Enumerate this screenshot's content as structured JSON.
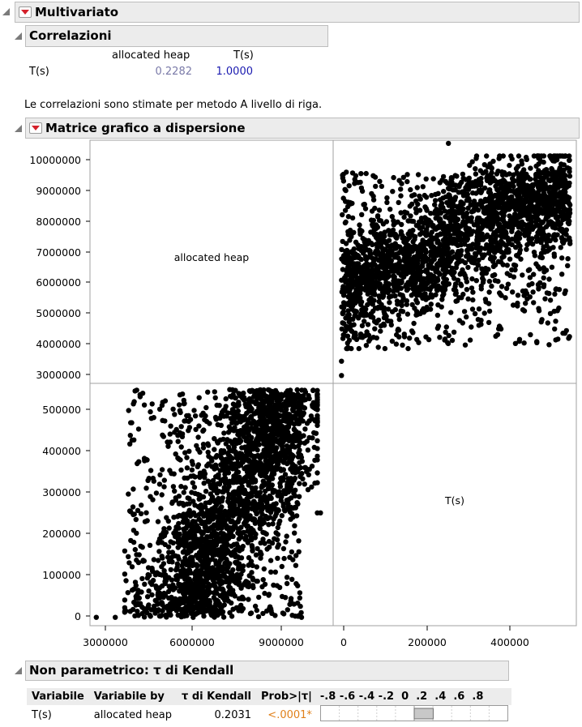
{
  "multivariate": {
    "title": "Multivariato"
  },
  "correlations": {
    "title": "Correlazioni",
    "columns": [
      "allocated heap",
      "T(s)"
    ],
    "row_label": "T(s)",
    "values": [
      "0.2282",
      "1.0000"
    ],
    "value_colors": [
      "#7a7aa8",
      "#1a1ab0"
    ],
    "note": "Le correlazioni sono stimate per metodo A livello di riga."
  },
  "scatter": {
    "title": "Matrice grafico a dispersione",
    "diag_labels": [
      "allocated heap",
      "T(s)"
    ],
    "y_ticks_heap": [
      "10000000",
      "9000000",
      "8000000",
      "7000000",
      "6000000",
      "5000000",
      "4000000",
      "3000000"
    ],
    "y_ticks_T": [
      "500000",
      "400000",
      "300000",
      "200000",
      "100000",
      "0"
    ],
    "x_ticks_heap": [
      "3000000",
      "6000000",
      "9000000"
    ],
    "x_ticks_T": [
      "0",
      "200000",
      "400000"
    ]
  },
  "chart_data": {
    "type": "scatter",
    "title": "Matrice grafico a dispersione",
    "variables": [
      "allocated heap",
      "T(s)"
    ],
    "heap_range": [
      2800000,
      10500000
    ],
    "T_range": [
      -20000,
      560000
    ],
    "approx_series": [
      {
        "cluster_points_T_vs_heap": [
          [
            4000000,
            20000
          ],
          [
            5000000,
            60000
          ],
          [
            6000000,
            120000
          ],
          [
            6500000,
            200000
          ],
          [
            7000000,
            280000
          ],
          [
            7500000,
            360000
          ],
          [
            8000000,
            420000
          ],
          [
            8500000,
            470000
          ],
          [
            9000000,
            510000
          ],
          [
            5500000,
            480000
          ],
          [
            4500000,
            540000
          ],
          [
            4000000,
            400000
          ],
          [
            6000000,
            530000
          ],
          [
            9500000,
            300000
          ],
          [
            3000000,
            0
          ],
          [
            10000000,
            250000
          ]
        ]
      }
    ]
  },
  "kendall": {
    "title": "Non parametrico: τ di Kendall",
    "headers": [
      "Variabile",
      "Variabile by",
      "τ di Kendall",
      "Prob>|τ|"
    ],
    "scale_labels": [
      "-.8",
      "-.6",
      "-.4",
      "-.2",
      "0",
      ".2",
      ".4",
      ".6",
      ".8"
    ],
    "row": {
      "var": "T(s)",
      "by": "allocated heap",
      "tau": "0.2031",
      "prob": "<.0001*"
    },
    "tau_value": 0.2031,
    "prob_color": "#e0801a"
  }
}
